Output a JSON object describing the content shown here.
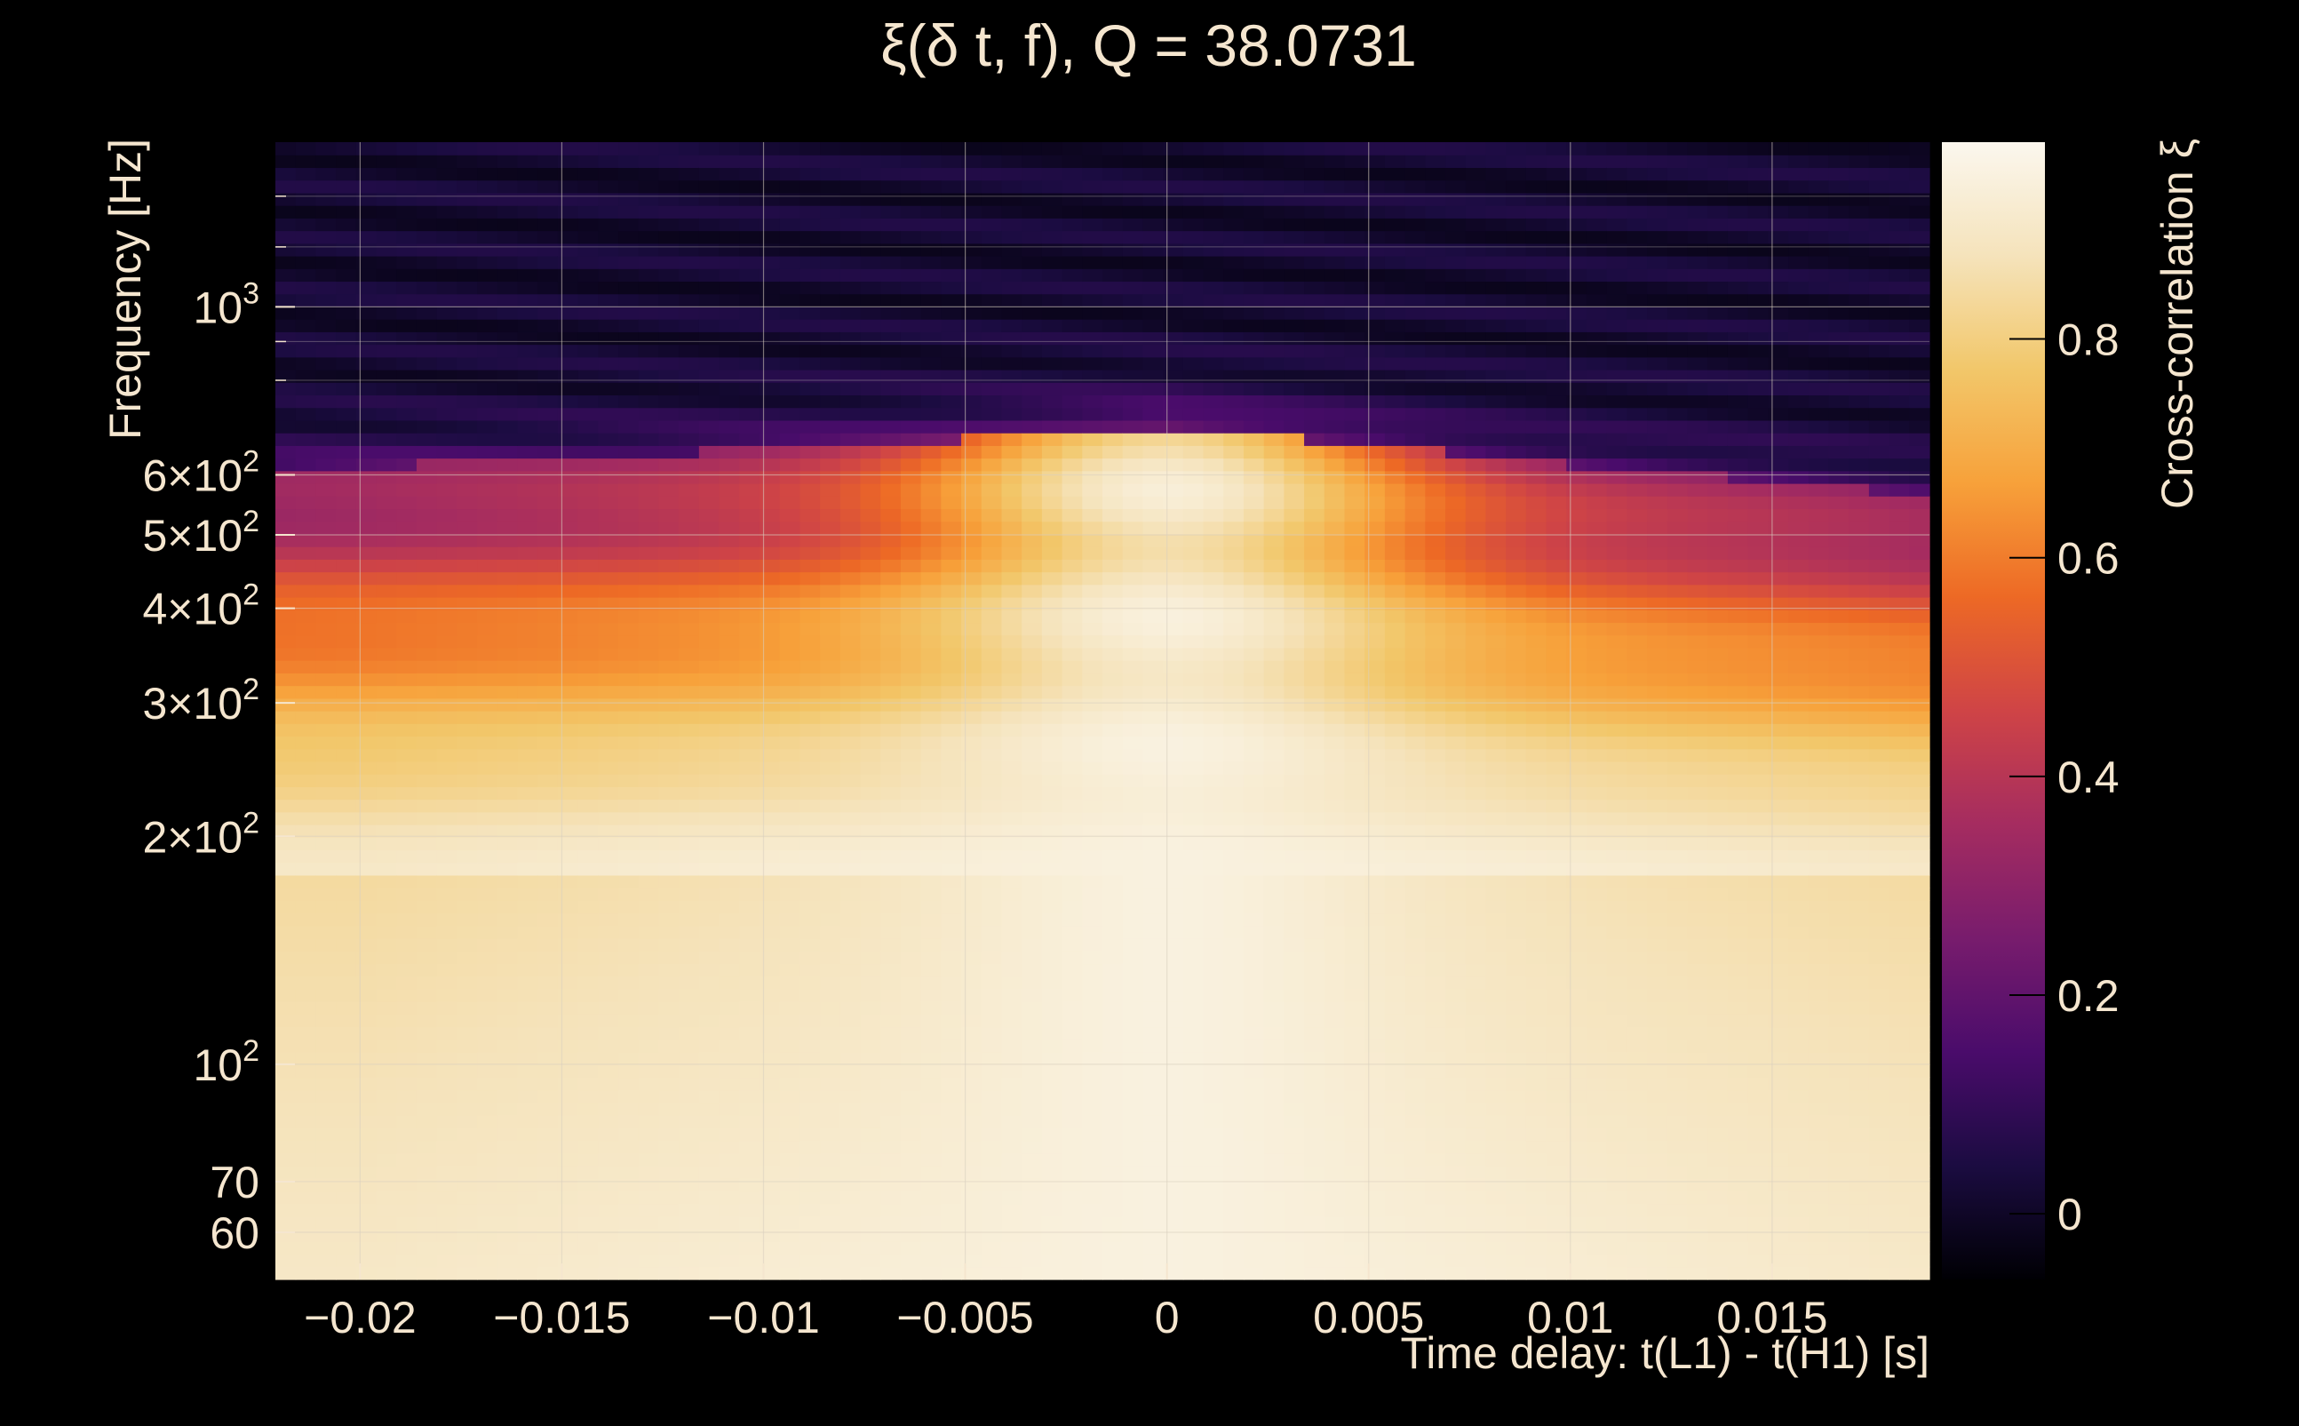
{
  "chart_data": {
    "type": "heatmap",
    "title": "ξ(δ t, f), Q = 38.0731",
    "xlabel": "Time delay: t(L1) - t(H1) [s]",
    "ylabel": "Frequency [Hz]",
    "colorbar_label": "Cross-correlation ξ",
    "xlim": [
      -0.0221,
      0.0189
    ],
    "ylim": [
      52,
      1650
    ],
    "yscale": "log",
    "clim": [
      -0.06,
      0.98
    ],
    "grid": true,
    "x_ticks": [
      {
        "value": -0.02,
        "label": "−0.02"
      },
      {
        "value": -0.015,
        "label": "−0.015"
      },
      {
        "value": -0.01,
        "label": "−0.01"
      },
      {
        "value": -0.005,
        "label": "−0.005"
      },
      {
        "value": 0,
        "label": "0"
      },
      {
        "value": 0.005,
        "label": "0.005"
      },
      {
        "value": 0.01,
        "label": "0.01"
      },
      {
        "value": 0.015,
        "label": "0.015"
      }
    ],
    "y_ticks": [
      {
        "value": 60,
        "base": "60",
        "exp": ""
      },
      {
        "value": 70,
        "base": "70",
        "exp": ""
      },
      {
        "value": 100,
        "base": "10",
        "exp": "2"
      },
      {
        "value": 200,
        "base": "2×10",
        "exp": "2"
      },
      {
        "value": 300,
        "base": "3×10",
        "exp": "2"
      },
      {
        "value": 400,
        "base": "4×10",
        "exp": "2"
      },
      {
        "value": 500,
        "base": "5×10",
        "exp": "2"
      },
      {
        "value": 600,
        "base": "6×10",
        "exp": "2"
      },
      {
        "value": 1000,
        "base": "10",
        "exp": "3"
      }
    ],
    "colorbar_ticks": [
      {
        "value": 0,
        "label": "0"
      },
      {
        "value": 0.2,
        "label": "0.2"
      },
      {
        "value": 0.4,
        "label": "0.4"
      },
      {
        "value": 0.6,
        "label": "0.6"
      },
      {
        "value": 0.8,
        "label": "0.8"
      }
    ],
    "colormap": [
      "#000004",
      "#1b0c41",
      "#4a0c6b",
      "#781c6d",
      "#a52c60",
      "#cf4446",
      "#ed6925",
      "#f7a13a",
      "#f2c76a",
      "#f5e3bb",
      "#fbf7ee"
    ],
    "bands": {
      "high_edge_hz": {
        "x": [
          -0.022,
          -0.015,
          -0.01,
          -0.005,
          0,
          0.005,
          0.01,
          0.015,
          0.019
        ],
        "y": [
          610,
          630,
          650,
          670,
          690,
          660,
          620,
          590,
          560
        ]
      },
      "notes": "Values near 1 below ~200 Hz, peak ridge around δt = 0, rapid falloff above ~600 Hz"
    }
  }
}
